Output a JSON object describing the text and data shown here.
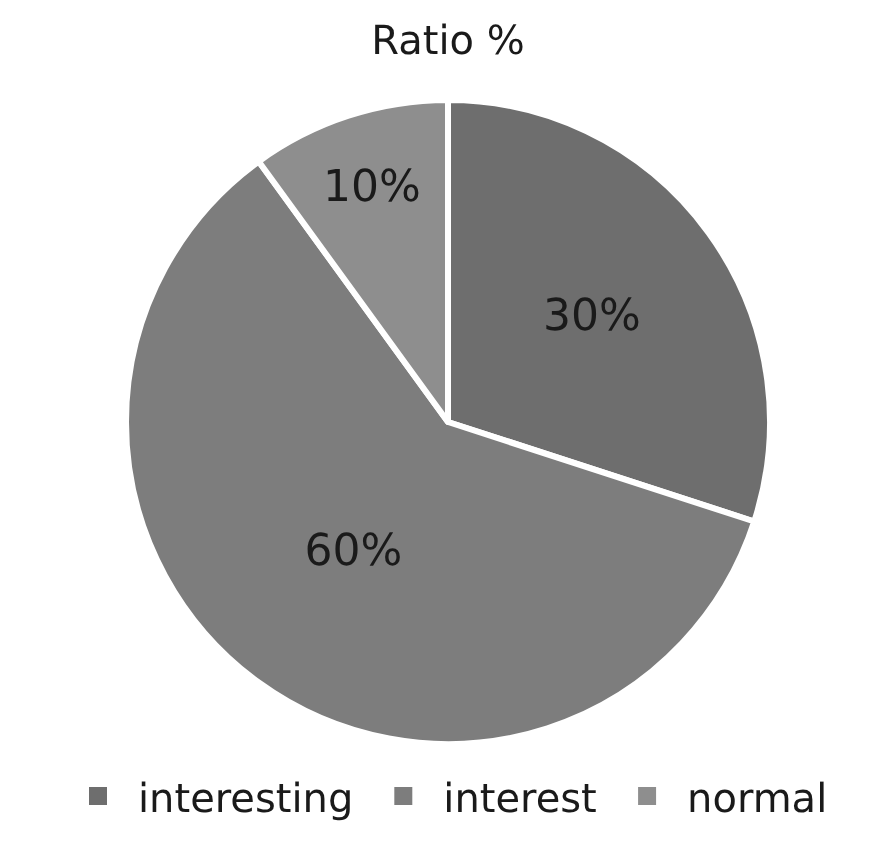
{
  "chart_data": {
    "type": "pie",
    "title": "Ratio %",
    "categories": [
      "interesting",
      "interest",
      "normal"
    ],
    "values": [
      30,
      60,
      10
    ],
    "value_labels": [
      "30%",
      "60%",
      "10%"
    ],
    "colors": [
      "#6e6e6e",
      "#7d7d7d",
      "#8e8e8e"
    ],
    "legend": "bottom"
  }
}
